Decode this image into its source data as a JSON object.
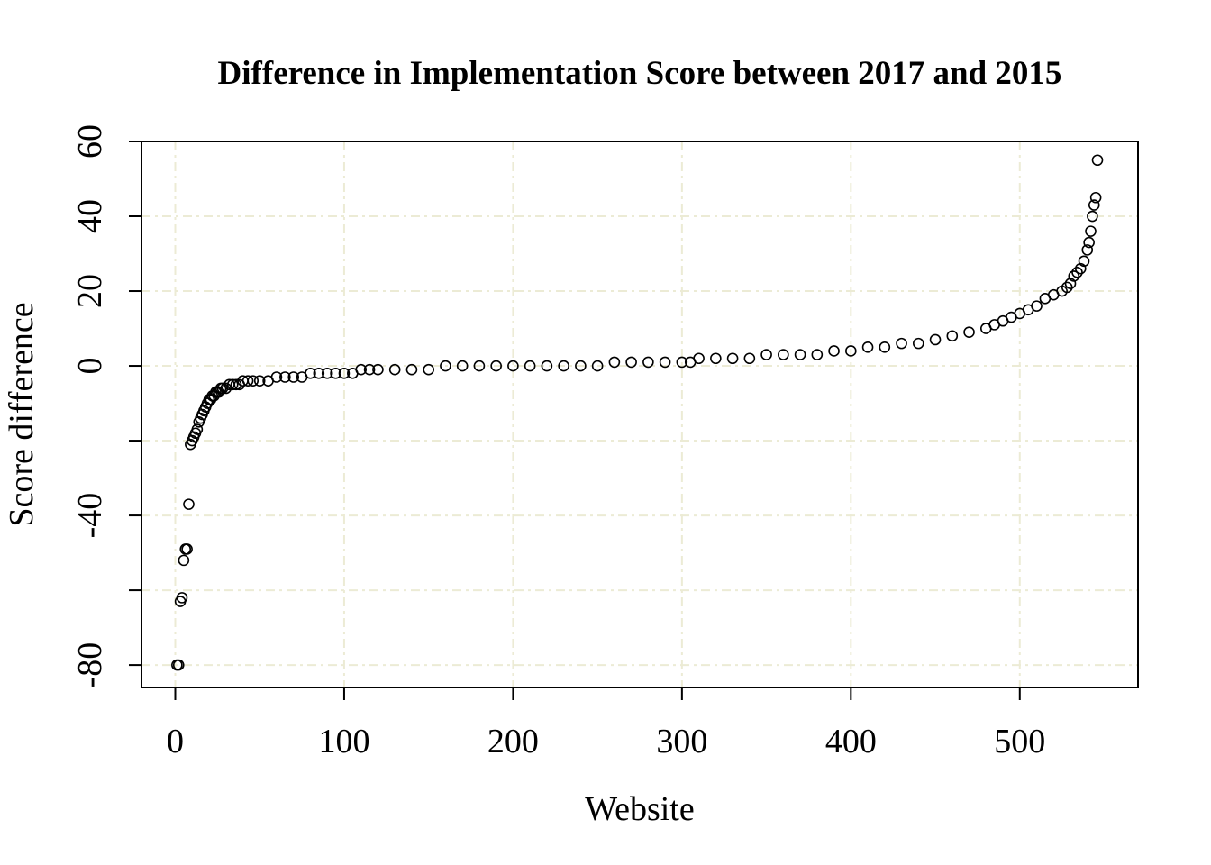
{
  "chart_data": {
    "type": "scatter",
    "title": "Difference in Implementation Score between 2017 and 2015",
    "xlabel": "Website",
    "ylabel": "Score difference",
    "xlim": [
      -20,
      570
    ],
    "ylim": [
      -86,
      60
    ],
    "x_ticks": [
      0,
      100,
      200,
      300,
      400,
      500
    ],
    "x_tick_labels": [
      "0",
      "100",
      "200",
      "300",
      "400",
      "500"
    ],
    "y_ticks": [
      -80,
      -60,
      -40,
      -20,
      0,
      20,
      40,
      60
    ],
    "y_tick_labels": [
      "-80",
      "",
      "-40",
      "",
      "0",
      "20",
      "40",
      "60"
    ],
    "grid": true,
    "grid_color": "#ecebd5",
    "point_color": "#000000",
    "marker": "open-circle",
    "series": [
      {
        "x": [
          1,
          2,
          3,
          4,
          5,
          6,
          7,
          8,
          9,
          10,
          11,
          12,
          13,
          14,
          15,
          16,
          17,
          18,
          19,
          20,
          21,
          22,
          23,
          24,
          25,
          26,
          27,
          28,
          30,
          32,
          34,
          36,
          38,
          40,
          43,
          46,
          50,
          55,
          60,
          65,
          70,
          75,
          80,
          85,
          90,
          95,
          100,
          105,
          110,
          115,
          120,
          130,
          140,
          150,
          160,
          170,
          180,
          190,
          200,
          210,
          220,
          230,
          240,
          250,
          260,
          270,
          280,
          290,
          300,
          305,
          310,
          320,
          330,
          340,
          350,
          360,
          370,
          380,
          390,
          400,
          410,
          420,
          430,
          440,
          450,
          460,
          470,
          480,
          485,
          490,
          495,
          500,
          505,
          510,
          515,
          520,
          525,
          528,
          530,
          532,
          534,
          536,
          538,
          540,
          541,
          542,
          543,
          544,
          545,
          546
        ],
        "y": [
          -80,
          -80,
          -63,
          -62,
          -52,
          -49,
          -49,
          -37,
          -21,
          -20,
          -19,
          -18,
          -17,
          -15,
          -14,
          -13,
          -12,
          -11,
          -10,
          -9,
          -9,
          -8,
          -8,
          -7,
          -7,
          -7,
          -6,
          -6,
          -6,
          -5,
          -5,
          -5,
          -5,
          -4,
          -4,
          -4,
          -4,
          -4,
          -3,
          -3,
          -3,
          -3,
          -2,
          -2,
          -2,
          -2,
          -2,
          -2,
          -1,
          -1,
          -1,
          -1,
          -1,
          -1,
          0,
          0,
          0,
          0,
          0,
          0,
          0,
          0,
          0,
          0,
          1,
          1,
          1,
          1,
          1,
          1,
          2,
          2,
          2,
          2,
          3,
          3,
          3,
          3,
          4,
          4,
          5,
          5,
          6,
          6,
          7,
          8,
          9,
          10,
          11,
          12,
          13,
          14,
          15,
          16,
          18,
          19,
          20,
          21,
          22,
          24,
          25,
          26,
          28,
          31,
          33,
          36,
          40,
          43,
          45,
          55
        ]
      }
    ]
  }
}
